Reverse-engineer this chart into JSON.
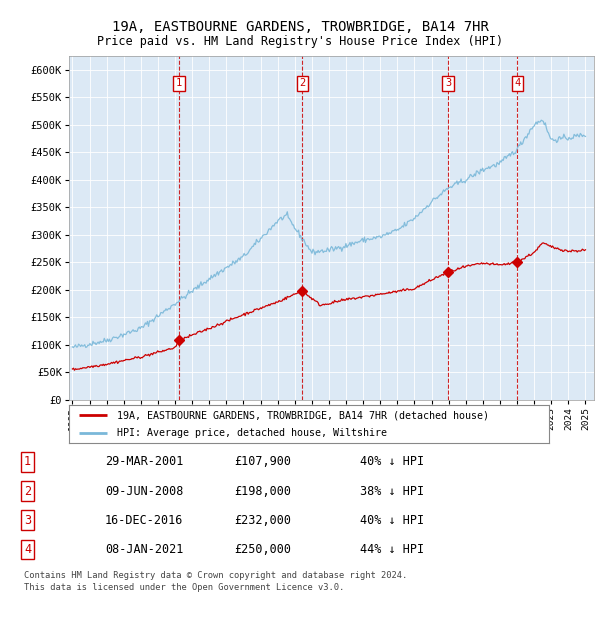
{
  "title_line1": "19A, EASTBOURNE GARDENS, TROWBRIDGE, BA14 7HR",
  "title_line2": "Price paid vs. HM Land Registry's House Price Index (HPI)",
  "ylabel_ticks": [
    "£0",
    "£50K",
    "£100K",
    "£150K",
    "£200K",
    "£250K",
    "£300K",
    "£350K",
    "£400K",
    "£450K",
    "£500K",
    "£550K",
    "£600K"
  ],
  "ytick_values": [
    0,
    50000,
    100000,
    150000,
    200000,
    250000,
    300000,
    350000,
    400000,
    450000,
    500000,
    550000,
    600000
  ],
  "ylim": [
    0,
    625000
  ],
  "xlim_start": 1994.8,
  "xlim_end": 2025.5,
  "plot_bg_color": "#dce9f5",
  "grid_color": "#ffffff",
  "hpi_line_color": "#7ab8d9",
  "price_line_color": "#cc0000",
  "vline_color": "#cc0000",
  "sale_marker_color": "#cc0000",
  "transactions": [
    {
      "label": "1",
      "date": 2001.24,
      "price": 107900
    },
    {
      "label": "2",
      "date": 2008.44,
      "price": 198000
    },
    {
      "label": "3",
      "date": 2016.96,
      "price": 232000
    },
    {
      "label": "4",
      "date": 2021.02,
      "price": 250000
    }
  ],
  "legend_entry1": "19A, EASTBOURNE GARDENS, TROWBRIDGE, BA14 7HR (detached house)",
  "legend_entry2": "HPI: Average price, detached house, Wiltshire",
  "footer_line1": "Contains HM Land Registry data © Crown copyright and database right 2024.",
  "footer_line2": "This data is licensed under the Open Government Licence v3.0.",
  "table_rows": [
    [
      "1",
      "29-MAR-2001",
      "£107,900",
      "40% ↓ HPI"
    ],
    [
      "2",
      "09-JUN-2008",
      "£198,000",
      "38% ↓ HPI"
    ],
    [
      "3",
      "16-DEC-2016",
      "£232,000",
      "40% ↓ HPI"
    ],
    [
      "4",
      "08-JAN-2021",
      "£250,000",
      "44% ↓ HPI"
    ]
  ]
}
